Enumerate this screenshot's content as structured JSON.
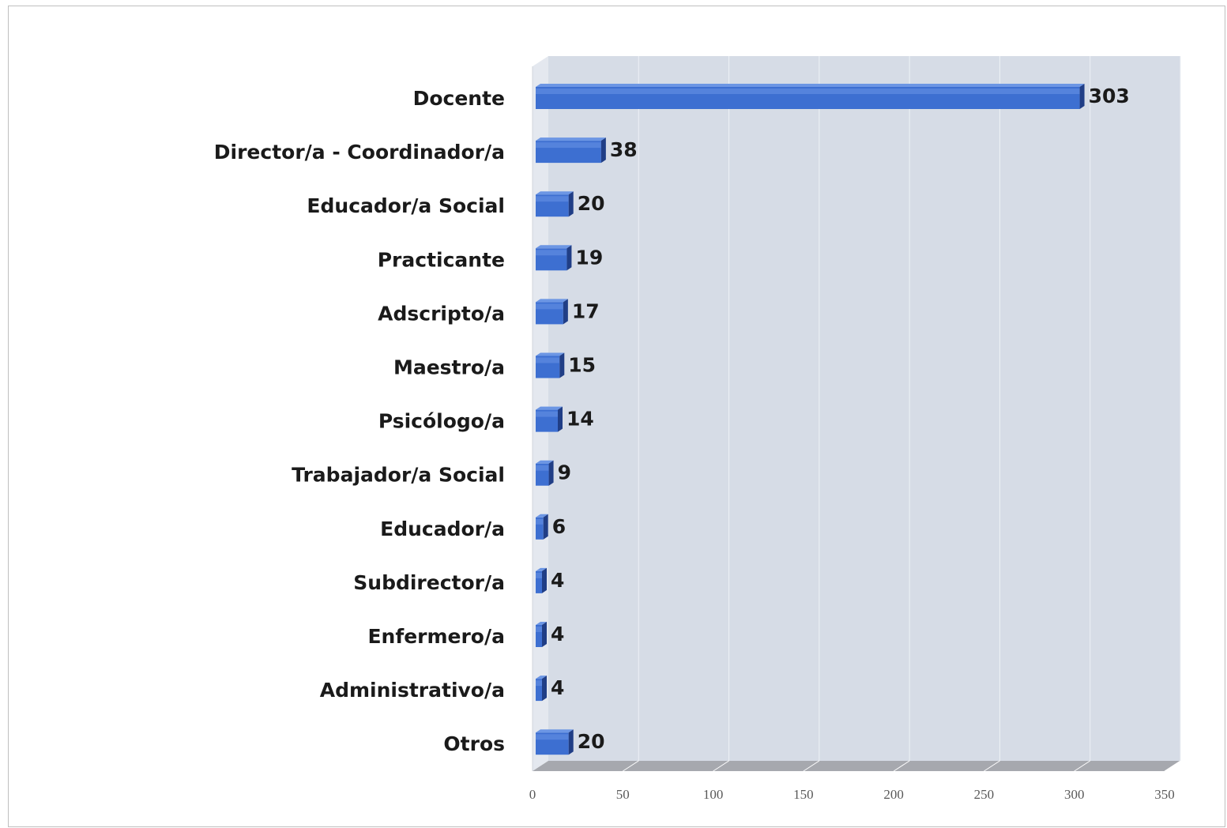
{
  "chart_data": {
    "type": "bar",
    "orientation": "horizontal",
    "style": "3d",
    "title": "",
    "xlabel": "",
    "ylabel": "",
    "categories": [
      "Docente",
      "Director/a - Coordinador/a",
      "Educador/a Social",
      "Practicante",
      "Adscripto/a",
      "Maestro/a",
      "Psicólogo/a",
      "Trabajador/a Social",
      "Educador/a",
      "Subdirector/a",
      "Enfermero/a",
      "Administrativo/a",
      "Otros"
    ],
    "values": [
      303,
      38,
      20,
      19,
      17,
      15,
      14,
      9,
      6,
      4,
      4,
      4,
      20
    ],
    "data_labels": [
      "303",
      "38",
      "20",
      "19",
      "17",
      "15",
      "14",
      "9",
      "6",
      "4",
      "4",
      "4",
      "20"
    ],
    "xlim": [
      0,
      350
    ],
    "ticks": [
      0,
      50,
      100,
      150,
      200,
      250,
      300,
      350
    ],
    "tick_labels": [
      "0",
      "50",
      "100",
      "150",
      "200",
      "250",
      "300",
      "350"
    ],
    "grid": true,
    "legend": "none",
    "colors": {
      "bar_face": "#3d6fd1",
      "bar_top": "#6c96e4",
      "bar_side": "#203e86",
      "back_wall": "#d6dce6",
      "floor": "#a6a8ae",
      "gridline": "#eef1f6"
    }
  }
}
